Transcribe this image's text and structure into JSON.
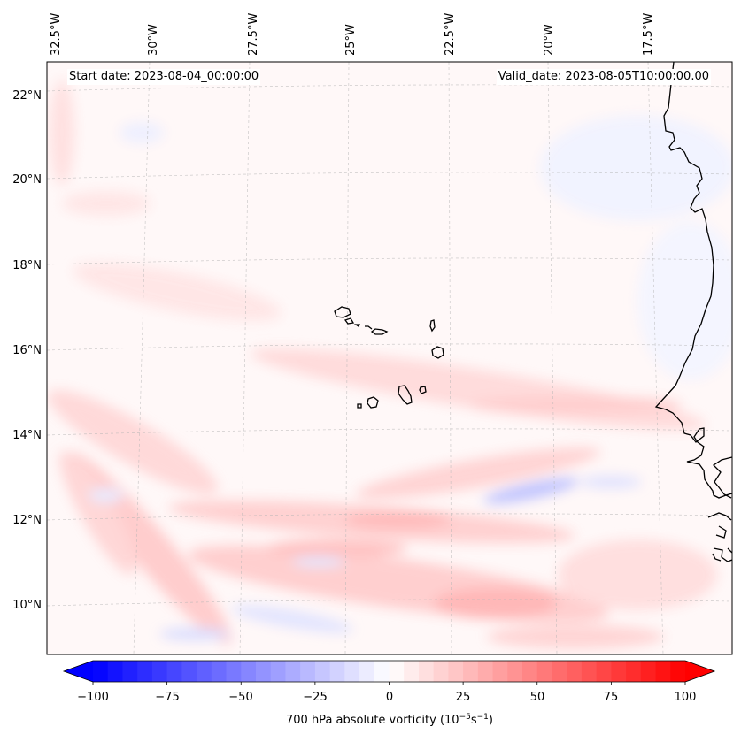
{
  "map": {
    "lat_labels": [
      "22°N",
      "20°N",
      "18°N",
      "16°N",
      "14°N",
      "12°N",
      "10°N"
    ],
    "lon_labels": [
      "32.5°W",
      "30°W",
      "27.5°W",
      "25°W",
      "22.5°W",
      "20°W",
      "17.5°W"
    ],
    "start_date": "Start date: 2023-08-04_00:00:00",
    "valid_date": "Valid_date: 2023-08-05T10:00:00.00",
    "field": "700 hPa absolute vorticity"
  },
  "colorbar": {
    "ticks": [
      "−100",
      "−75",
      "−50",
      "−25",
      "0",
      "25",
      "50",
      "75",
      "100"
    ],
    "vmin": -100,
    "vmax": 100,
    "levels": 40,
    "label_prefix": "700 hPa absolute vorticity (10",
    "label_exp1": "−5",
    "label_mid": "s",
    "label_exp2": "−1",
    "label_suffix": ")",
    "cmap": "bwr",
    "color_neg": "#0000ff",
    "color_zero": "#ffffff",
    "color_pos": "#ff0000"
  }
}
